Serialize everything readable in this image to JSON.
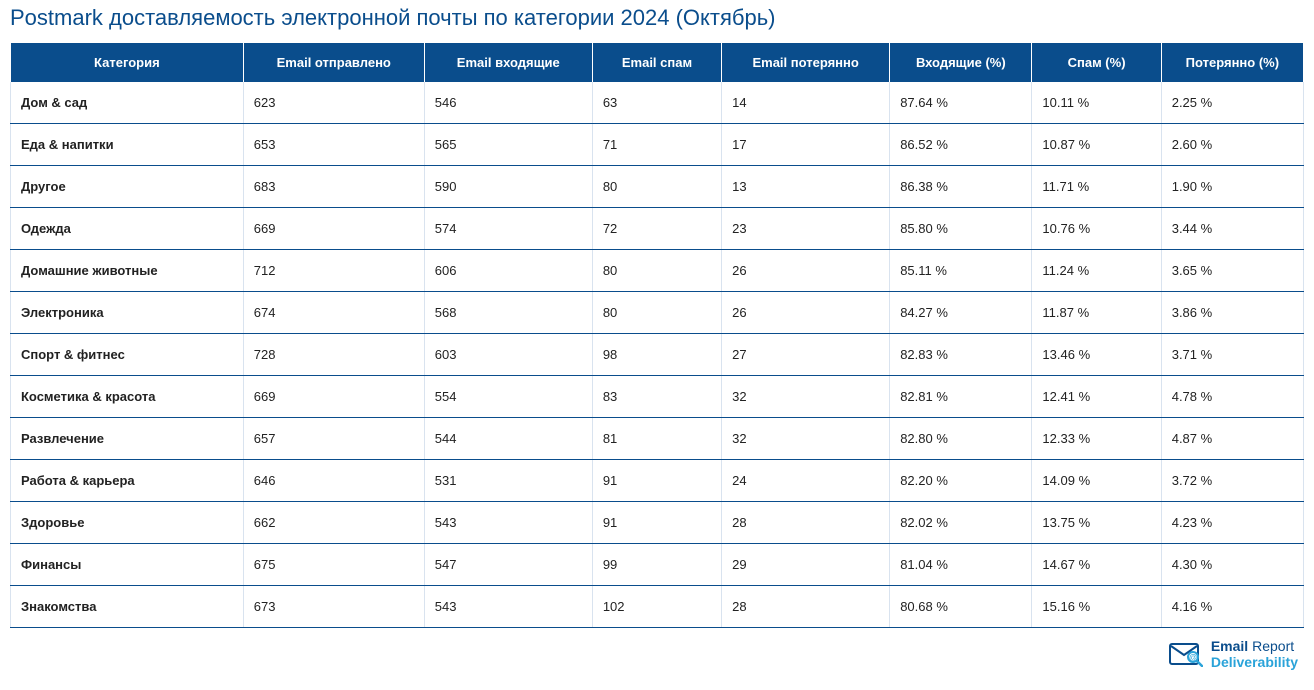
{
  "title": "Postmark доставляемость электронной почты по категории 2024 (Октябрь)",
  "colors": {
    "header_bg": "#0a4d8c",
    "header_text": "#ffffff",
    "title_color": "#0a4d8c",
    "row_border": "#0a4d8c",
    "cell_side_border": "#d9e3ef",
    "logo_primary": "#0a4d8c",
    "logo_accent": "#2aa3d9"
  },
  "table": {
    "columns": [
      "Категория",
      "Email отправлено",
      "Email входящие",
      "Email спам",
      "Email потерянно",
      "Входящие (%)",
      "Спам (%)",
      "Потерянно (%)"
    ],
    "rows": [
      [
        "Дом & сад",
        "623",
        "546",
        "63",
        "14",
        "87.64 %",
        "10.11 %",
        "2.25 %"
      ],
      [
        "Еда & напитки",
        "653",
        "565",
        "71",
        "17",
        "86.52 %",
        "10.87 %",
        "2.60 %"
      ],
      [
        "Другое",
        "683",
        "590",
        "80",
        "13",
        "86.38 %",
        "11.71 %",
        "1.90 %"
      ],
      [
        "Одежда",
        "669",
        "574",
        "72",
        "23",
        "85.80 %",
        "10.76 %",
        "3.44 %"
      ],
      [
        "Домашние животные",
        "712",
        "606",
        "80",
        "26",
        "85.11 %",
        "11.24 %",
        "3.65 %"
      ],
      [
        "Электроника",
        "674",
        "568",
        "80",
        "26",
        "84.27 %",
        "11.87 %",
        "3.86 %"
      ],
      [
        "Спорт & фитнес",
        "728",
        "603",
        "98",
        "27",
        "82.83 %",
        "13.46 %",
        "3.71 %"
      ],
      [
        "Косметика & красота",
        "669",
        "554",
        "83",
        "32",
        "82.81 %",
        "12.41 %",
        "4.78 %"
      ],
      [
        "Развлечение",
        "657",
        "544",
        "81",
        "32",
        "82.80 %",
        "12.33 %",
        "4.87 %"
      ],
      [
        "Работа & карьера",
        "646",
        "531",
        "91",
        "24",
        "82.20 %",
        "14.09 %",
        "3.72 %"
      ],
      [
        "Здоровье",
        "662",
        "543",
        "91",
        "28",
        "82.02 %",
        "13.75 %",
        "4.23 %"
      ],
      [
        "Финансы",
        "675",
        "547",
        "99",
        "29",
        "81.04 %",
        "14.67 %",
        "4.30 %"
      ],
      [
        "Знакомства",
        "673",
        "543",
        "102",
        "28",
        "80.68 %",
        "15.16 %",
        "4.16 %"
      ]
    ]
  },
  "footer_logo": {
    "line1_a": "Email",
    "line1_b": "Report",
    "line2": "Deliverability"
  }
}
